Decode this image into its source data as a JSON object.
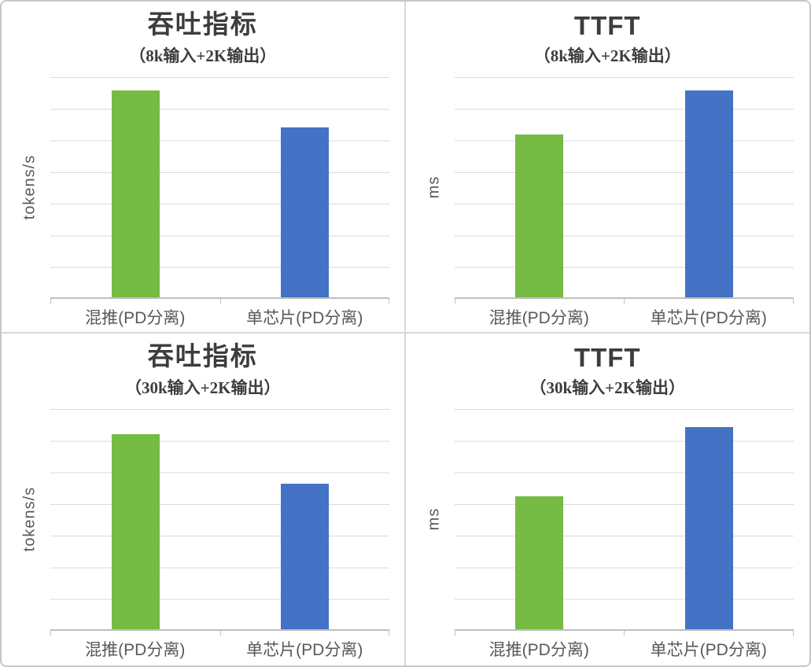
{
  "colors": {
    "bar_green": "#76BB43",
    "bar_blue": "#4472C4",
    "gridline": "#DADADA",
    "axis_line": "#BFBFBF",
    "title_text": "#3D3D3D",
    "label_text": "#595959",
    "panel_border": "#D8D8D8"
  },
  "chart_data": [
    {
      "type": "bar",
      "title": "吞吐指标",
      "subtitle": "（8k输入+2K输出）",
      "xlabel": "",
      "ylabel": "tokens/s",
      "categories": [
        "混推(PD分离)",
        "单芯片(PD分离)"
      ],
      "values_est_gridline_units": [
        6.6,
        5.4
      ],
      "bar_height_pct_of_plot": [
        94.0,
        77.3
      ],
      "bar_colors": [
        "#76BB43",
        "#4472C4"
      ],
      "ylim_gridline_units": [
        0,
        7
      ],
      "gridlines": 7,
      "axis_tick_labels_visible": false,
      "legend": "none"
    },
    {
      "type": "bar",
      "title": "TTFT",
      "subtitle": "（8k输入+2K输出）",
      "xlabel": "",
      "ylabel": "ms",
      "categories": [
        "混推(PD分离)",
        "单芯片(PD分离)"
      ],
      "values_est_gridline_units": [
        5.2,
        6.6
      ],
      "bar_height_pct_of_plot": [
        74.1,
        94.0
      ],
      "bar_colors": [
        "#76BB43",
        "#4472C4"
      ],
      "ylim_gridline_units": [
        0,
        7
      ],
      "gridlines": 7,
      "axis_tick_labels_visible": false,
      "legend": "none"
    },
    {
      "type": "bar",
      "title": "吞吐指标",
      "subtitle": "（30k输入+2K输出）",
      "xlabel": "",
      "ylabel": "tokens/s",
      "categories": [
        "混推(PD分离)",
        "单芯片(PD分离)"
      ],
      "values_est_gridline_units": [
        6.2,
        4.6
      ],
      "bar_height_pct_of_plot": [
        88.7,
        66.0
      ],
      "bar_colors": [
        "#76BB43",
        "#4472C4"
      ],
      "ylim_gridline_units": [
        0,
        7
      ],
      "gridlines": 7,
      "axis_tick_labels_visible": false,
      "legend": "none"
    },
    {
      "type": "bar",
      "title": "TTFT",
      "subtitle": "（30k输入+2K输出）",
      "xlabel": "",
      "ylabel": "ms",
      "categories": [
        "混推(PD分离)",
        "单芯片(PD分离)"
      ],
      "values_est_gridline_units": [
        4.2,
        6.4
      ],
      "bar_height_pct_of_plot": [
        60.3,
        91.8
      ],
      "bar_colors": [
        "#76BB43",
        "#4472C4"
      ],
      "ylim_gridline_units": [
        0,
        7
      ],
      "gridlines": 7,
      "axis_tick_labels_visible": false,
      "legend": "none"
    }
  ]
}
